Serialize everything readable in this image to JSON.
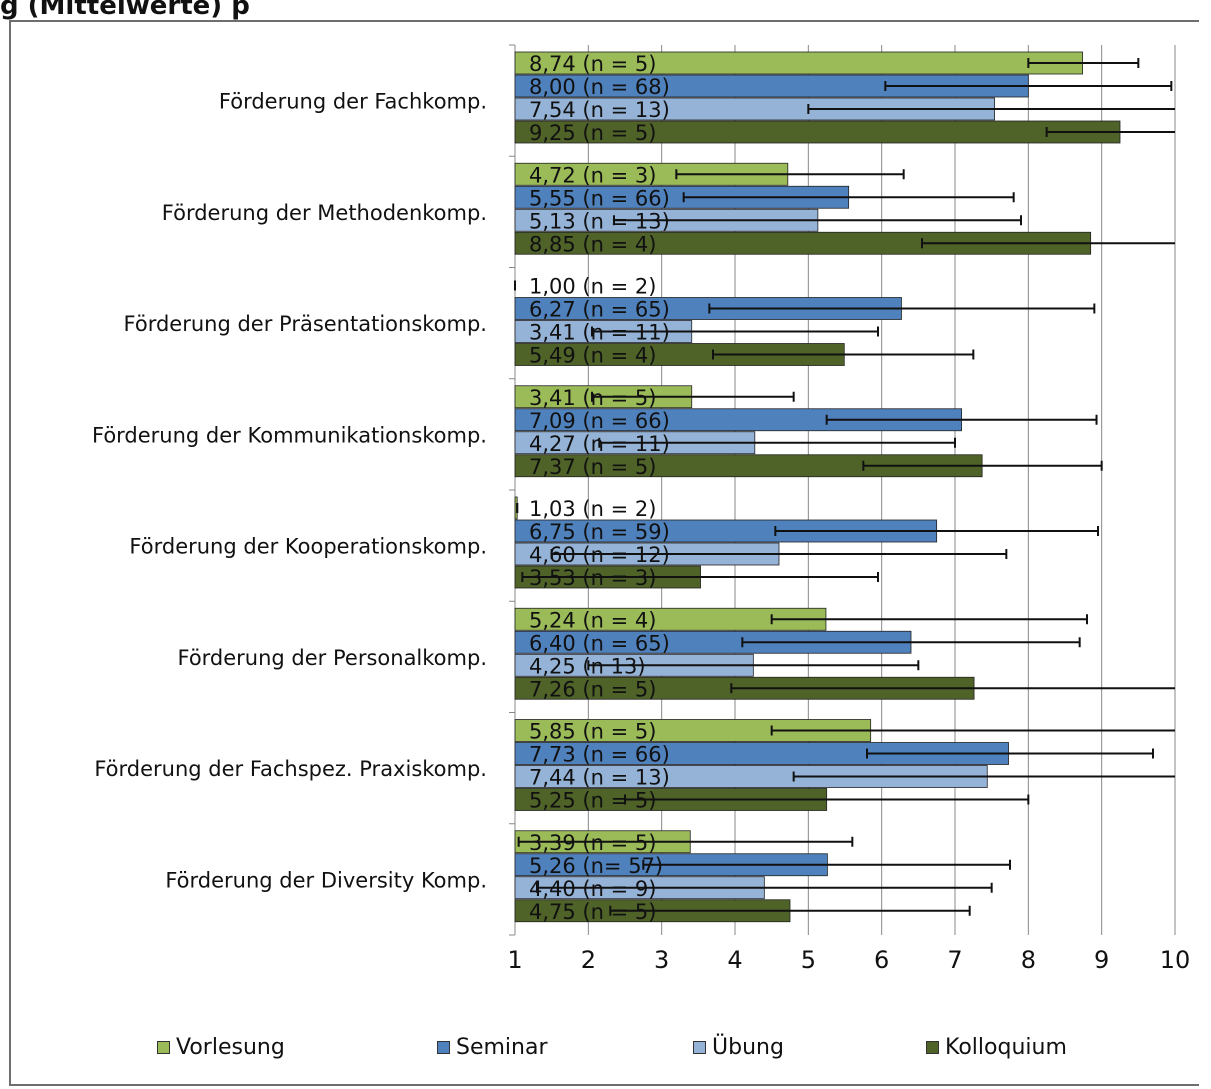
{
  "chart_data": {
    "type": "bar",
    "orientation": "horizontal",
    "title_partial": "g (Mittelwerte) p",
    "categories": [
      "Förderung der Fachkomp.",
      "Förderung der Methodenkomp.",
      "Förderung der Präsentationskomp.",
      "Förderung der Kommunikationskomp.",
      "Förderung der Kooperationskomp.",
      "Förderung der Personalkomp.",
      "Förderung der Fachspez. Praxiskomp.",
      "Förderung der Diversity Komp."
    ],
    "xlim": [
      1,
      10
    ],
    "xticks": [
      "1",
      "2",
      "3",
      "4",
      "5",
      "6",
      "7",
      "8",
      "9",
      "10"
    ],
    "grid": true,
    "legend_position": "bottom",
    "series": [
      {
        "name": "Vorlesung",
        "color": "#9bbb59",
        "values": [
          8.74,
          4.72,
          1.0,
          3.41,
          1.03,
          5.24,
          5.85,
          3.39
        ],
        "labels": [
          "8,74 (n = 5)",
          "4,72 (n = 3)",
          "1,00 (n = 2)",
          "3,41 (n = 5)",
          "1,03 (n = 2)",
          "5,24 (n = 4)",
          "5,85 (n = 5)",
          "3,39 (n = 5)"
        ],
        "error_low": [
          8.0,
          3.2,
          1.0,
          2.05,
          1.03,
          4.5,
          4.5,
          1.05
        ],
        "error_high": [
          9.5,
          6.3,
          1.0,
          4.8,
          1.03,
          8.8,
          10.0,
          5.6
        ]
      },
      {
        "name": "Seminar",
        "color": "#4f81bd",
        "values": [
          8.0,
          5.55,
          6.27,
          7.09,
          6.75,
          6.4,
          7.73,
          5.26
        ],
        "labels": [
          "8,00 (n = 68)",
          "5,55 (n = 66)",
          "6,27 (n = 65)",
          "7,09 (n = 66)",
          "6,75 (n = 59)",
          "6,40 (n = 65)",
          "7,73 (n = 66)",
          "5,26 (n= 57)"
        ],
        "error_low": [
          6.05,
          3.3,
          3.65,
          5.25,
          4.55,
          4.1,
          5.8,
          2.75
        ],
        "error_high": [
          9.95,
          7.8,
          8.9,
          8.93,
          8.95,
          8.7,
          9.7,
          7.75
        ]
      },
      {
        "name": "Übung",
        "color": "#95b3d7",
        "values": [
          7.54,
          5.13,
          3.41,
          4.27,
          4.6,
          4.25,
          7.44,
          4.4
        ],
        "labels": [
          "7,54 (n = 13)",
          "5,13 (n = 13)",
          "3,41 (n = 11)",
          "4,27 (n = 11)",
          "4,60 (n = 12)",
          "4,25 (n 13)",
          "7,44 (n = 13)",
          "4,40 (n = 9)"
        ],
        "error_low": [
          5.0,
          2.35,
          2.05,
          2.15,
          1.5,
          2.0,
          4.8,
          1.3
        ],
        "error_high": [
          10.0,
          7.9,
          5.95,
          7.0,
          7.7,
          6.5,
          10.0,
          7.5
        ]
      },
      {
        "name": "Kolloquium",
        "color": "#4f6228",
        "values": [
          9.25,
          8.85,
          5.49,
          7.37,
          3.53,
          7.26,
          5.25,
          4.75
        ],
        "labels": [
          "9,25 (n = 5)",
          "8,85 (n = 4)",
          "5,49 (n = 4)",
          "7,37 (n = 5)",
          "3,53 (n = 3)",
          "7,26 (n = 5)",
          "5,25 (n = 5)",
          "4,75 (n = 5)"
        ],
        "error_low": [
          8.25,
          6.55,
          3.7,
          5.75,
          1.1,
          3.95,
          2.5,
          2.3
        ],
        "error_high": [
          10.0,
          10.0,
          7.25,
          9.0,
          5.95,
          10.0,
          8.0,
          7.2
        ]
      }
    ]
  }
}
